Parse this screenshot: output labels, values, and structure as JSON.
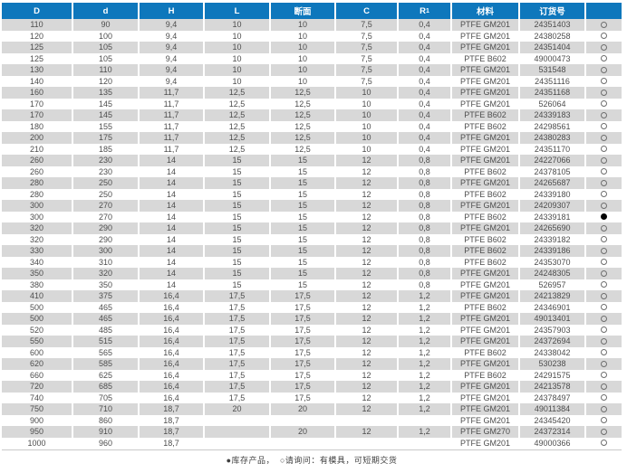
{
  "colors": {
    "header_blue": "#0e77bc",
    "stripe_gray": "#d8d8d8"
  },
  "table": {
    "columns": [
      {
        "key": "D",
        "label": "D"
      },
      {
        "key": "d",
        "label": "d"
      },
      {
        "key": "H",
        "label": "H"
      },
      {
        "key": "L",
        "label": "L"
      },
      {
        "key": "cross-section",
        "label": "断面"
      },
      {
        "key": "C",
        "label": "C"
      },
      {
        "key": "R1",
        "label": "R",
        "sub": "1"
      },
      {
        "key": "material",
        "label": "材料"
      },
      {
        "key": "order-no",
        "label": "订货号"
      },
      {
        "key": "availability",
        "label": ""
      }
    ],
    "rows": [
      [
        "110",
        "90",
        "9,4",
        "10",
        "10",
        "7,5",
        "0,4",
        "PTFE GM201",
        "24351403",
        "○"
      ],
      [
        "120",
        "100",
        "9,4",
        "10",
        "10",
        "7,5",
        "0,4",
        "PTFE GM201",
        "24380258",
        "○"
      ],
      [
        "125",
        "105",
        "9,4",
        "10",
        "10",
        "7,5",
        "0,4",
        "PTFE GM201",
        "24351404",
        "○"
      ],
      [
        "125",
        "105",
        "9,4",
        "10",
        "10",
        "7,5",
        "0,4",
        "PTFE B602",
        "49000473",
        "○"
      ],
      [
        "130",
        "110",
        "9,4",
        "10",
        "10",
        "7,5",
        "0,4",
        "PTFE GM201",
        "531548",
        "○"
      ],
      [
        "140",
        "120",
        "9,4",
        "10",
        "10",
        "7,5",
        "0,4",
        "PTFE GM201",
        "24351116",
        "○"
      ],
      [
        "160",
        "135",
        "11,7",
        "12,5",
        "12,5",
        "10",
        "0,4",
        "PTFE GM201",
        "24351168",
        "○"
      ],
      [
        "170",
        "145",
        "11,7",
        "12,5",
        "12,5",
        "10",
        "0,4",
        "PTFE GM201",
        "526064",
        "○"
      ],
      [
        "170",
        "145",
        "11,7",
        "12,5",
        "12,5",
        "10",
        "0,4",
        "PTFE B602",
        "24339183",
        "○"
      ],
      [
        "180",
        "155",
        "11,7",
        "12,5",
        "12,5",
        "10",
        "0,4",
        "PTFE B602",
        "24298561",
        "○"
      ],
      [
        "200",
        "175",
        "11,7",
        "12,5",
        "12,5",
        "10",
        "0,4",
        "PTFE GM201",
        "24380283",
        "○"
      ],
      [
        "210",
        "185",
        "11,7",
        "12,5",
        "12,5",
        "10",
        "0,4",
        "PTFE GM201",
        "24351170",
        "○"
      ],
      [
        "260",
        "230",
        "14",
        "15",
        "15",
        "12",
        "0,8",
        "PTFE GM201",
        "24227066",
        "○"
      ],
      [
        "260",
        "230",
        "14",
        "15",
        "15",
        "12",
        "0,8",
        "PTFE B602",
        "24378105",
        "○"
      ],
      [
        "280",
        "250",
        "14",
        "15",
        "15",
        "12",
        "0,8",
        "PTFE GM201",
        "24265687",
        "○"
      ],
      [
        "280",
        "250",
        "14",
        "15",
        "15",
        "12",
        "0,8",
        "PTFE B602",
        "24339180",
        "○"
      ],
      [
        "300",
        "270",
        "14",
        "15",
        "15",
        "12",
        "0,8",
        "PTFE GM201",
        "24209307",
        "○"
      ],
      [
        "300",
        "270",
        "14",
        "15",
        "15",
        "12",
        "0,8",
        "PTFE B602",
        "24339181",
        "●"
      ],
      [
        "320",
        "290",
        "14",
        "15",
        "15",
        "12",
        "0,8",
        "PTFE GM201",
        "24265690",
        "○"
      ],
      [
        "320",
        "290",
        "14",
        "15",
        "15",
        "12",
        "0,8",
        "PTFE B602",
        "24339182",
        "○"
      ],
      [
        "330",
        "300",
        "14",
        "15",
        "15",
        "12",
        "0,8",
        "PTFE B602",
        "24339186",
        "○"
      ],
      [
        "340",
        "310",
        "14",
        "15",
        "15",
        "12",
        "0,8",
        "PTFE B602",
        "24353070",
        "○"
      ],
      [
        "350",
        "320",
        "14",
        "15",
        "15",
        "12",
        "0,8",
        "PTFE GM201",
        "24248305",
        "○"
      ],
      [
        "380",
        "350",
        "14",
        "15",
        "15",
        "12",
        "0,8",
        "PTFE GM201",
        "526957",
        "○"
      ],
      [
        "410",
        "375",
        "16,4",
        "17,5",
        "17,5",
        "12",
        "1,2",
        "PTFE GM201",
        "24213829",
        "○"
      ],
      [
        "500",
        "465",
        "16,4",
        "17,5",
        "17,5",
        "12",
        "1,2",
        "PTFE B602",
        "24346901",
        "○"
      ],
      [
        "500",
        "465",
        "16,4",
        "17,5",
        "17,5",
        "12",
        "1,2",
        "PTFE GM201",
        "49013401",
        "○"
      ],
      [
        "520",
        "485",
        "16,4",
        "17,5",
        "17,5",
        "12",
        "1,2",
        "PTFE GM201",
        "24357903",
        "○"
      ],
      [
        "550",
        "515",
        "16,4",
        "17,5",
        "17,5",
        "12",
        "1,2",
        "PTFE GM201",
        "24372694",
        "○"
      ],
      [
        "600",
        "565",
        "16,4",
        "17,5",
        "17,5",
        "12",
        "1,2",
        "PTFE B602",
        "24338042",
        "○"
      ],
      [
        "620",
        "585",
        "16,4",
        "17,5",
        "17,5",
        "12",
        "1,2",
        "PTFE GM201",
        "530238",
        "○"
      ],
      [
        "660",
        "625",
        "16,4",
        "17,5",
        "17,5",
        "12",
        "1,2",
        "PTFE B602",
        "24291575",
        "○"
      ],
      [
        "720",
        "685",
        "16,4",
        "17,5",
        "17,5",
        "12",
        "1,2",
        "PTFE GM201",
        "24213578",
        "○"
      ],
      [
        "740",
        "705",
        "16,4",
        "17,5",
        "17,5",
        "12",
        "1,2",
        "PTFE GM201",
        "24378497",
        "○"
      ],
      [
        "750",
        "710",
        "18,7",
        "20",
        "20",
        "12",
        "1,2",
        "PTFE GM201",
        "49011384",
        "○"
      ],
      [
        "900",
        "860",
        "18,7",
        "",
        "",
        "",
        "",
        "PTFE GM201",
        "24345420",
        "○"
      ],
      [
        "950",
        "910",
        "18,7",
        "",
        "20",
        "12",
        "1,2",
        "PTFE GM270",
        "24372314",
        "○"
      ],
      [
        "1000",
        "960",
        "18,7",
        "",
        "",
        "",
        "",
        "PTFE GM201",
        "49000366",
        "○"
      ]
    ]
  },
  "legend": {
    "text": "●库存产品，  ○请询问：有模具，可短期交货"
  }
}
